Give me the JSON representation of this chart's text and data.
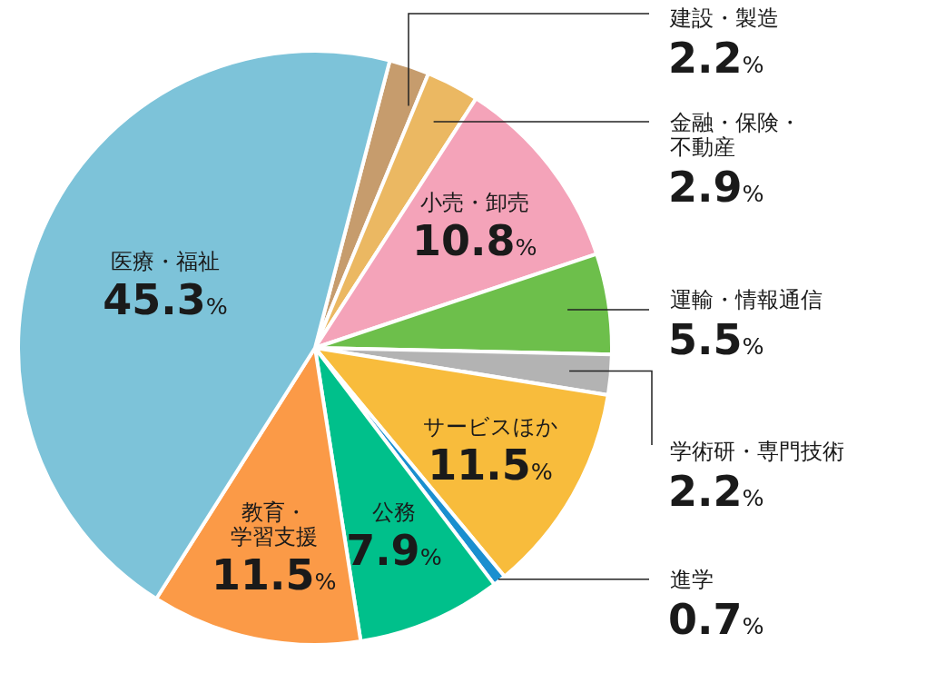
{
  "chart_data": {
    "type": "pie",
    "categories": [
      "建設・製造",
      "金融・保険・不動産",
      "小売・卸売",
      "運輸・情報通信",
      "学術研・専門技術",
      "サービスほか",
      "進学",
      "公務",
      "教育・学習支援",
      "医療・福祉"
    ],
    "values": [
      2.2,
      2.9,
      10.8,
      5.5,
      2.2,
      11.5,
      0.7,
      7.9,
      11.5,
      45.3
    ],
    "value_labels": [
      "2.2%",
      "2.9%",
      "10.8%",
      "5.5%",
      "2.2%",
      "11.5%",
      "0.7%",
      "7.9%",
      "11.5%",
      "45.3%"
    ],
    "colors": [
      "#c69c6d",
      "#ebb862",
      "#f4a3b9",
      "#6dbf4b",
      "#b3b3b3",
      "#f8bc3c",
      "#1a8fcf",
      "#00c08b",
      "#fb9a47",
      "#7dc3d9"
    ]
  }
}
